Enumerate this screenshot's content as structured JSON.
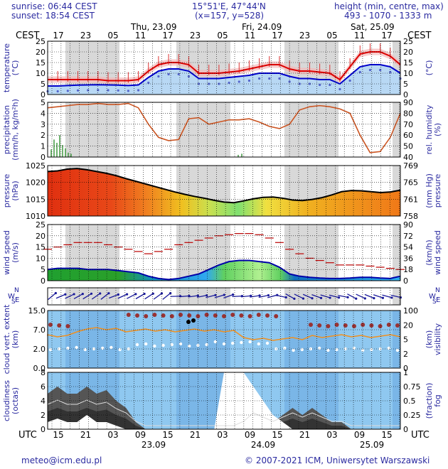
{
  "header": {
    "sunrise": "sunrise: 06:44 CEST",
    "sunset": "sunset: 18:54 CEST",
    "coords": "15°51'E, 47°44'N",
    "grid": "(x=157, y=528)",
    "height_title": "height (min, centre, max)",
    "height_values": "493 - 1070 - 1333 m",
    "tz_left": "CEST",
    "tz_right": "CEST",
    "tz_bottom_left": "UTC",
    "tz_bottom_right": "UTC"
  },
  "footer": {
    "email": "meteo@icm.edu.pl",
    "copyright": "© 2007-2021 ICM, Uniwersytet Warszawski"
  },
  "time_axis": {
    "top_day_labels": [
      "Thu, 23.09",
      "Fri, 24.09",
      "Sat, 25.09"
    ],
    "top_hour_labels": [
      "17",
      "23",
      "05",
      "11",
      "17",
      "23",
      "05",
      "11",
      "17",
      "23",
      "05",
      "11",
      "17"
    ],
    "bottom_hour_labels": [
      "15",
      "21",
      "03",
      "09",
      "15",
      "21",
      "03",
      "09",
      "15",
      "21",
      "03",
      "09",
      "15"
    ],
    "bottom_day_labels": [
      "23.09",
      "24.09",
      "25.09"
    ]
  },
  "colors": {
    "grid": "#000000",
    "night": "#d8d8d8",
    "sky": "#8fc8f0",
    "temp_red": "#dd0000",
    "temp_blue": "#0000cc",
    "humidity": "#cc5522"
  },
  "chart_data": [
    {
      "type": "line",
      "title": "temperature",
      "ylabel_left": "temperature\n(°C)",
      "ylabel_right": "(°C)",
      "ylim": [
        0,
        25
      ],
      "yticks": [
        "25",
        "20",
        "15",
        "10",
        "5",
        "0"
      ],
      "series": [
        {
          "name": "",
          "values": [
            7,
            7,
            7,
            7,
            7,
            7,
            6.5,
            6.5,
            6.5,
            7,
            11,
            14,
            15,
            15,
            14,
            10,
            10,
            10,
            10.5,
            11,
            12,
            13,
            14,
            14,
            12,
            11,
            11,
            10.5,
            10,
            7,
            13,
            19,
            20,
            20,
            18,
            14
          ]
        },
        {
          "name": "",
          "values": [
            4,
            4,
            4.2,
            4.4,
            4.5,
            4.6,
            4.5,
            4.4,
            4.2,
            4.5,
            8,
            11,
            12,
            12,
            11,
            7.5,
            7.5,
            7.5,
            8,
            8.5,
            9,
            10,
            10,
            10,
            8.5,
            7.5,
            7.5,
            7,
            7,
            5,
            9,
            13,
            14,
            14,
            13,
            10
          ]
        }
      ]
    },
    {
      "type": "line",
      "title": "precipitation / relative humidity",
      "ylabel_left": "precipitation\n(mm/h, kg/m²h)",
      "ylabel_right": "rel. humidity\n(%)",
      "ylim": [
        0,
        5
      ],
      "yticks": [
        "5",
        "4",
        "3",
        "2",
        "1",
        "0"
      ],
      "y2lim": [
        40,
        90
      ],
      "y2ticks": [
        "90",
        "80",
        "70",
        "60",
        "50",
        "40"
      ],
      "series": [
        {
          "name": "",
          "values": [
            85,
            86,
            87,
            88,
            88,
            89,
            88,
            88,
            89,
            85,
            70,
            58,
            55,
            56,
            75,
            76,
            70,
            72,
            74,
            74,
            75,
            72,
            68,
            66,
            70,
            83,
            86,
            87,
            86,
            84,
            80,
            60,
            44,
            45,
            58,
            80
          ]
        }
      ]
    },
    {
      "type": "area",
      "title": "pressure",
      "ylabel_left": "pressure\n(hPa)",
      "ylabel_right": "(mm Hg)\npressure",
      "ylim": [
        1010,
        1027
      ],
      "yticks": [
        "1025",
        "1020",
        "1015",
        "1010"
      ],
      "y2ticks": [
        "769",
        "765",
        "761",
        "758"
      ],
      "series": [
        {
          "name": "",
          "values": [
            1025,
            1025.2,
            1025.8,
            1026,
            1025.6,
            1025,
            1024.4,
            1023.6,
            1022.6,
            1021.7,
            1020.8,
            1019.9,
            1019,
            1018.1,
            1017.3,
            1016.6,
            1016,
            1015.3,
            1014.7,
            1014.5,
            1015.1,
            1015.8,
            1016.3,
            1016.4,
            1016,
            1015.4,
            1015.2,
            1015.6,
            1016.2,
            1017.1,
            1018.2,
            1018.6,
            1018.5,
            1018.2,
            1017.9,
            1018.1,
            1018.7
          ]
        }
      ]
    },
    {
      "type": "area",
      "title": "wind speed",
      "ylabel_left": "wind speed\n(m/s)",
      "ylabel_right": "(km/h)\nwind speed",
      "ylim": [
        0,
        25
      ],
      "yticks": [
        "25",
        "20",
        "15",
        "10",
        "5",
        "0"
      ],
      "y2ticks": [
        "90",
        "72",
        "54",
        "36",
        "18",
        "0"
      ],
      "series": [
        {
          "name": "",
          "values": [
            5,
            5.5,
            5.5,
            5.5,
            5,
            5,
            5,
            4.5,
            4,
            3.5,
            2,
            1,
            0.5,
            1,
            2,
            3,
            5,
            7,
            8.5,
            9,
            9,
            8.5,
            8,
            6,
            3,
            2,
            1.5,
            1.2,
            1,
            1,
            1.2,
            1.5,
            1.5,
            1.2,
            1,
            2
          ]
        },
        {
          "name": "",
          "values": [
            14,
            15,
            16,
            17,
            17,
            17,
            16,
            15,
            14,
            13,
            12,
            13,
            14,
            16,
            17,
            18,
            19,
            20,
            20.5,
            21,
            21,
            20.5,
            19,
            17,
            14,
            12,
            10,
            9,
            8,
            7,
            7,
            7,
            6.5,
            6,
            5.5,
            5
          ]
        }
      ]
    },
    {
      "type": "scatter",
      "title": "cloud vertical extent / visibility",
      "ylabel_left": "cloud vert. extent\n(km)",
      "ylabel_right": "(km)\nvisibility",
      "yticks": [
        "15.0",
        "7.0",
        "2.0",
        "0.0"
      ],
      "y2ticks": [
        "100",
        "20",
        "5",
        "2",
        "0"
      ],
      "series": []
    },
    {
      "type": "area",
      "title": "cloudiness / fog",
      "ylabel_left": "cloudiness\n(octas)",
      "ylabel_right": "(fraction)\nfog",
      "ylim": [
        0,
        8
      ],
      "yticks": [
        "8",
        "6",
        "4",
        "2",
        "0"
      ],
      "y2ticks": [
        "1",
        "0.75",
        "0.5",
        "0.25",
        "0"
      ],
      "series": [
        {
          "name": "",
          "values": [
            5,
            6,
            5,
            5,
            6,
            5,
            5.5,
            4,
            3,
            1,
            0,
            0,
            0,
            0,
            0,
            0,
            0,
            0,
            0,
            0,
            1,
            3,
            2,
            1,
            2,
            3,
            2,
            3,
            2,
            1,
            1,
            0,
            0,
            0,
            0,
            0,
            0
          ]
        },
        {
          "name": "",
          "values": [
            1,
            1.5,
            1,
            1,
            2,
            1,
            1,
            0.5,
            0,
            0,
            0,
            0,
            0,
            0,
            0,
            0,
            0,
            0,
            8,
            8,
            8,
            6,
            4,
            2,
            1,
            0,
            0,
            0,
            0,
            0,
            0,
            0,
            0,
            0,
            0,
            0,
            0
          ]
        }
      ]
    }
  ]
}
